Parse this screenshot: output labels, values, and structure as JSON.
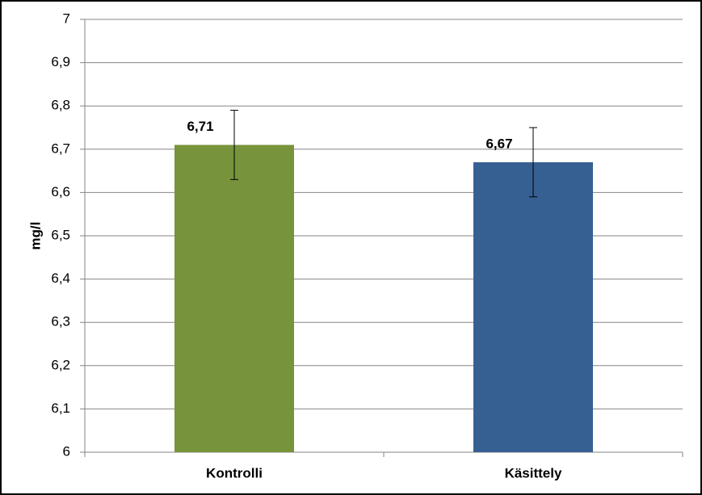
{
  "chart_data": {
    "type": "bar",
    "y_label": "mg/l",
    "categories": [
      "Kontrolli",
      "Käsittely"
    ],
    "values": [
      6.71,
      6.67
    ],
    "value_labels": [
      "6,71",
      "6,67"
    ],
    "errors": [
      0.08,
      0.08
    ],
    "colors": [
      "#77933c",
      "#376092"
    ],
    "ylim": [
      6,
      7
    ],
    "yticks": [
      6,
      {
        "value": 6.1,
        "label": "6,1"
      },
      {
        "value": 6.2,
        "label": "6,2"
      },
      {
        "value": 6.3,
        "label": "6,3"
      },
      {
        "value": 6.4,
        "label": "6,4"
      },
      {
        "value": 6.5,
        "label": "6,5"
      },
      {
        "value": 6.6,
        "label": "6,6"
      },
      {
        "value": 6.7,
        "label": "6,7"
      },
      {
        "value": 6.8,
        "label": "6,8"
      },
      {
        "value": 6.9,
        "label": "6,9"
      },
      7
    ],
    "grid": true
  }
}
